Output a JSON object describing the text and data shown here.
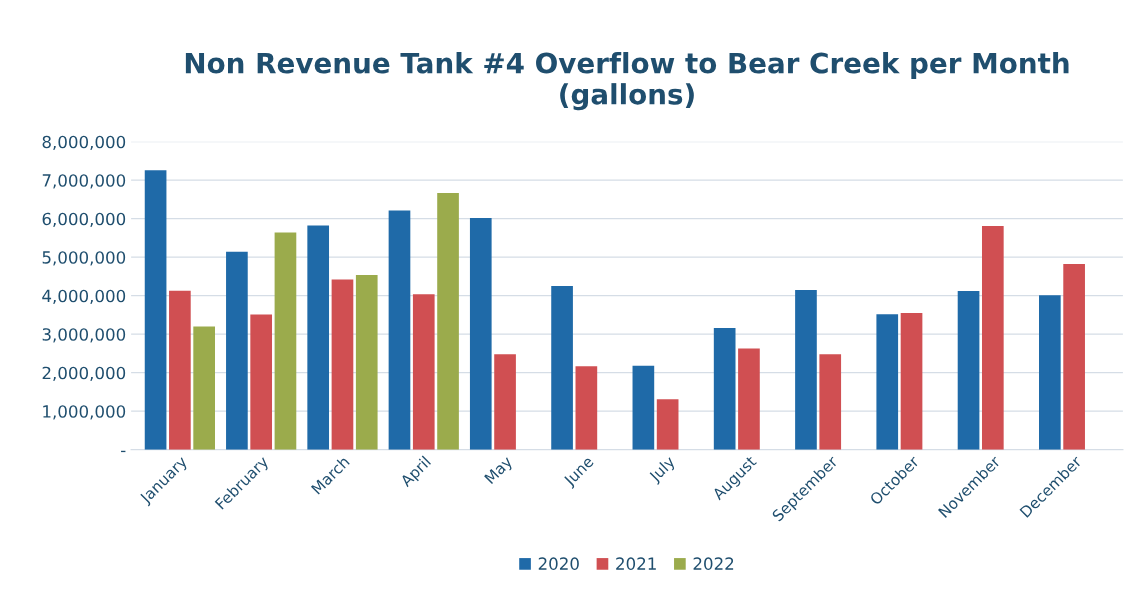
{
  "chart_data": {
    "type": "bar",
    "title": "Non Revenue Tank #4 Overflow to Bear Creek per Month (gallons)",
    "categories": [
      "January",
      "February",
      "March",
      "April",
      "May",
      "June",
      "July",
      "August",
      "September",
      "October",
      "November",
      "December"
    ],
    "series": [
      {
        "name": "2020",
        "color": "#1f6aa8",
        "values": [
          7260000,
          5140000,
          5820000,
          6210000,
          6020000,
          4250000,
          2180000,
          3160000,
          4150000,
          3520000,
          4120000,
          4010000
        ]
      },
      {
        "name": "2021",
        "color": "#d04f52",
        "values": [
          4130000,
          3510000,
          4420000,
          4040000,
          2480000,
          2170000,
          1310000,
          2630000,
          2480000,
          3550000,
          5810000,
          4820000
        ]
      },
      {
        "name": "2022",
        "color": "#9bab4c",
        "values": [
          3200000,
          5640000,
          4540000,
          6670000,
          null,
          null,
          null,
          null,
          null,
          null,
          null,
          null
        ]
      }
    ],
    "ylim": [
      0,
      8000000
    ],
    "yticks": [
      {
        "value": 0,
        "label": "-"
      },
      {
        "value": 1000000,
        "label": "1,000,000"
      },
      {
        "value": 2000000,
        "label": "2,000,000"
      },
      {
        "value": 3000000,
        "label": "3,000,000"
      },
      {
        "value": 4000000,
        "label": "4,000,000"
      },
      {
        "value": 5000000,
        "label": "5,000,000"
      },
      {
        "value": 6000000,
        "label": "6,000,000"
      },
      {
        "value": 7000000,
        "label": "7,000,000"
      },
      {
        "value": 8000000,
        "label": "8,000,000"
      }
    ],
    "grid": "y",
    "legend": "bottom"
  }
}
